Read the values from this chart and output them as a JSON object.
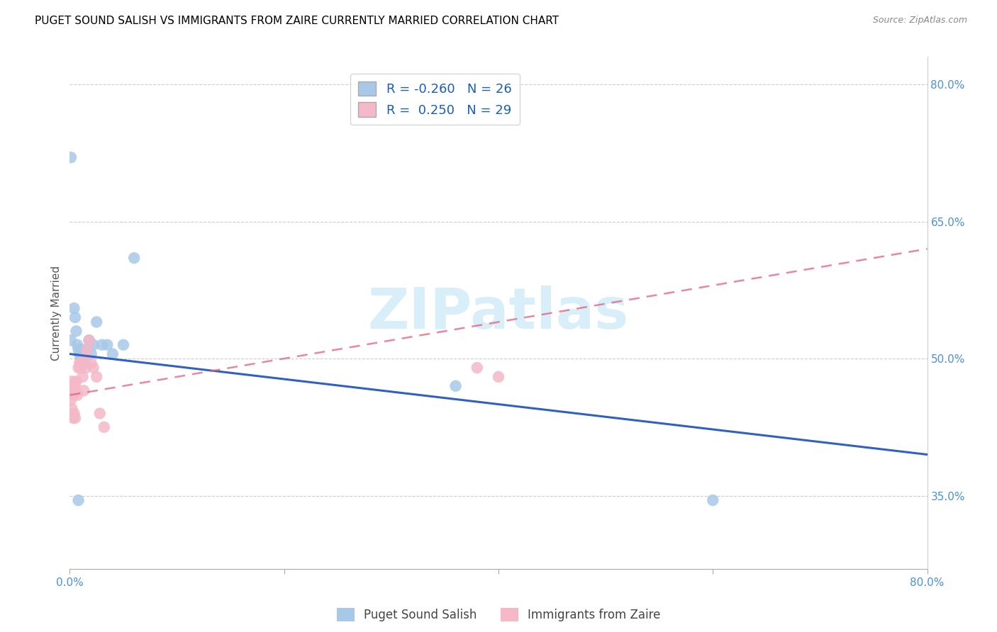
{
  "title": "PUGET SOUND SALISH VS IMMIGRANTS FROM ZAIRE CURRENTLY MARRIED CORRELATION CHART",
  "source": "Source: ZipAtlas.com",
  "ylabel": "Currently Married",
  "xmin": 0.0,
  "xmax": 0.8,
  "ymin": 0.27,
  "ymax": 0.83,
  "yticks": [
    0.35,
    0.5,
    0.65,
    0.8
  ],
  "ytick_labels": [
    "35.0%",
    "50.0%",
    "65.0%",
    "80.0%"
  ],
  "xticks": [
    0.0,
    0.2,
    0.4,
    0.6,
    0.8
  ],
  "xtick_labels": [
    "0.0%",
    "",
    "",
    "",
    "80.0%"
  ],
  "blue_R": -0.26,
  "blue_N": 26,
  "pink_R": 0.25,
  "pink_N": 29,
  "blue_color": "#a8c8e8",
  "pink_color": "#f4b8c8",
  "blue_line_color": "#3060c0",
  "pink_line_color": "#e06080",
  "watermark_color": "#d8eef8",
  "blue_line_y0": 0.505,
  "blue_line_y1": 0.395,
  "pink_line_y0": 0.46,
  "pink_line_y1": 0.62,
  "blue_points_x": [
    0.001,
    0.004,
    0.005,
    0.006,
    0.007,
    0.008,
    0.009,
    0.01,
    0.011,
    0.012,
    0.013,
    0.014,
    0.016,
    0.018,
    0.02,
    0.022,
    0.025,
    0.03,
    0.035,
    0.04,
    0.05,
    0.06,
    0.001,
    0.008,
    0.36,
    0.6
  ],
  "blue_points_y": [
    0.52,
    0.555,
    0.545,
    0.53,
    0.515,
    0.51,
    0.505,
    0.5,
    0.51,
    0.505,
    0.5,
    0.495,
    0.51,
    0.52,
    0.505,
    0.515,
    0.54,
    0.515,
    0.515,
    0.505,
    0.515,
    0.61,
    0.72,
    0.345,
    0.47,
    0.345
  ],
  "pink_points_x": [
    0.001,
    0.002,
    0.003,
    0.004,
    0.005,
    0.006,
    0.007,
    0.008,
    0.009,
    0.01,
    0.011,
    0.012,
    0.013,
    0.014,
    0.015,
    0.016,
    0.018,
    0.02,
    0.022,
    0.025,
    0.028,
    0.032,
    0.001,
    0.002,
    0.003,
    0.004,
    0.005,
    0.38,
    0.4
  ],
  "pink_points_y": [
    0.47,
    0.475,
    0.46,
    0.465,
    0.47,
    0.475,
    0.46,
    0.49,
    0.495,
    0.49,
    0.495,
    0.48,
    0.465,
    0.5,
    0.49,
    0.51,
    0.52,
    0.495,
    0.49,
    0.48,
    0.44,
    0.425,
    0.455,
    0.445,
    0.435,
    0.44,
    0.435,
    0.49,
    0.48
  ]
}
